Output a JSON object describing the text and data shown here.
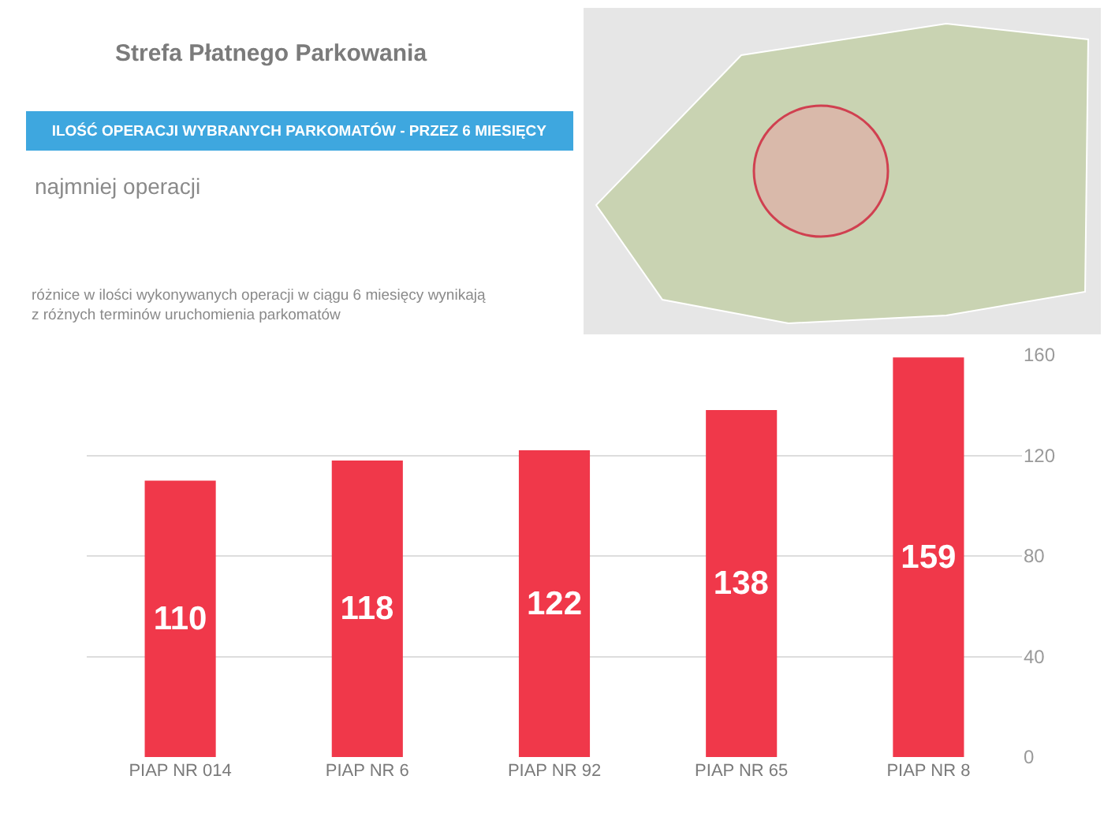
{
  "chart_data": {
    "type": "bar",
    "title": "Strefa Płatnego Parkowania",
    "subtitle": "ILOŚĆ OPERACJI WYBRANYCH PARKOMATÓW - PRZEZ 6 MIESIĘCY",
    "annotations": [
      "najmniej operacji",
      "różnice w ilości wykonywanych operacji w ciągu 6 miesięcy wynikają z różnych terminów uruchomienia parkomatów"
    ],
    "categories": [
      "PIAP NR 014",
      "PIAP NR 6",
      "PIAP NR 92",
      "PIAP NR 65",
      "PIAP NR 8"
    ],
    "values": [
      110,
      118,
      122,
      138,
      159
    ],
    "color": "#f0384a",
    "ylim": [
      0,
      160
    ],
    "yticks": [
      0,
      40,
      80,
      120,
      160
    ],
    "grid": "y",
    "data_labels": true
  }
}
